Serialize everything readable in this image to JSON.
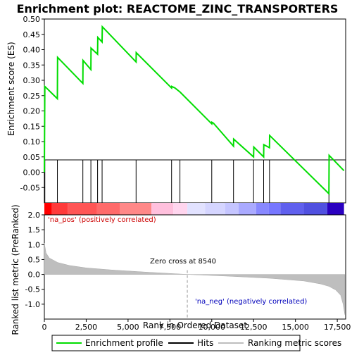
{
  "chart_data": {
    "type": "line",
    "title": "Enrichment plot: REACTOME_ZINC_TRANSPORTERS",
    "es_panel": {
      "ylabel": "Enrichment score (ES)",
      "ylim": [
        -0.1,
        0.5
      ],
      "yticks": [
        "0.50",
        "0.45",
        "0.40",
        "0.35",
        "0.30",
        "0.25",
        "0.20",
        "0.15",
        "0.10",
        "0.05",
        "0.00",
        "-0.05"
      ],
      "ytick_values": [
        0.5,
        0.45,
        0.4,
        0.35,
        0.3,
        0.25,
        0.2,
        0.15,
        0.1,
        0.05,
        0.0,
        -0.05
      ],
      "series": [
        {
          "name": "Enrichment profile",
          "color": "#00dd00",
          "x": [
            0,
            30,
            780,
            790,
            2300,
            2310,
            2780,
            2790,
            3180,
            3190,
            3450,
            3460,
            5480,
            5490,
            7600,
            7610,
            7800,
            8100,
            10000,
            10010,
            10100,
            11300,
            11310,
            12500,
            12510,
            13100,
            13110,
            13450,
            13460,
            17000,
            17010,
            17900
          ],
          "y": [
            0.0,
            0.28,
            0.24,
            0.375,
            0.29,
            0.365,
            0.335,
            0.405,
            0.385,
            0.44,
            0.425,
            0.475,
            0.36,
            0.39,
            0.275,
            0.28,
            0.275,
            0.262,
            0.158,
            0.163,
            0.16,
            0.085,
            0.108,
            0.05,
            0.082,
            0.05,
            0.09,
            0.08,
            0.12,
            -0.07,
            0.055,
            0.005
          ]
        }
      ]
    },
    "hits": {
      "name": "Hits",
      "x": [
        30,
        780,
        2300,
        2780,
        3180,
        3450,
        5480,
        7600,
        8100,
        10000,
        11300,
        12500,
        13100,
        13450,
        17000
      ]
    },
    "rank_panel": {
      "ylabel": "Ranked list metric (PreRanked)",
      "xlabel": "Rank in Ordered Dataset",
      "ylim": [
        -1.5,
        2.0
      ],
      "yticks": [
        "2.0",
        "1.5",
        "1.0",
        "0.5",
        "0.0",
        "-0.5",
        "-1.0"
      ],
      "ytick_values": [
        2.0,
        1.5,
        1.0,
        0.5,
        0.0,
        -0.5,
        -1.0
      ],
      "series_name": "Ranking metric scores",
      "x": [
        0,
        100,
        300,
        800,
        1500,
        2500,
        4000,
        6000,
        8540,
        11000,
        13500,
        15500,
        16500,
        17000,
        17400,
        17700,
        17850,
        17950
      ],
      "y": [
        1.05,
        0.72,
        0.55,
        0.4,
        0.3,
        0.22,
        0.15,
        0.08,
        0.0,
        -0.06,
        -0.13,
        -0.22,
        -0.32,
        -0.4,
        -0.52,
        -0.7,
        -1.0,
        -1.35
      ],
      "zero_cross_label": "Zero cross at 8540",
      "zero_cross": 8540,
      "pos_label": "'na_pos' (positively correlated)",
      "neg_label": "'na_neg' (negatively correlated)"
    },
    "xlim": [
      0,
      18000
    ],
    "xticks": [
      "0",
      "2,500",
      "5,000",
      "7,500",
      "10,000",
      "12,500",
      "15,000",
      "17,500"
    ],
    "xtick_values": [
      0,
      2500,
      5000,
      7500,
      10000,
      12500,
      15000,
      17500
    ],
    "heatbar": {
      "breaks": [
        0,
        450,
        1400,
        3150,
        4500,
        6400,
        7700,
        8540,
        9600,
        10800,
        11600,
        12650,
        13400,
        14100,
        15500,
        16900,
        17900
      ],
      "colors": [
        "#ff0000",
        "#ff3a3a",
        "#ff5555",
        "#ff6a6a",
        "#ff8888",
        "#ffc0dd",
        "#ffd5ee",
        "#e2e2ff",
        "#d5d5ff",
        "#c5c5ff",
        "#aaaaff",
        "#8888ff",
        "#7777ff",
        "#6060ee",
        "#5050e0",
        "#2a00c0"
      ]
    },
    "legend": [
      "Enrichment profile",
      "Hits",
      "Ranking metric scores"
    ],
    "colors": {
      "profile": "#00dd00",
      "hits": "#000000",
      "metric": "#bebebe",
      "pos_text": "#cc0000",
      "neg_text": "#0000bb",
      "zero_line": "#999999"
    }
  }
}
